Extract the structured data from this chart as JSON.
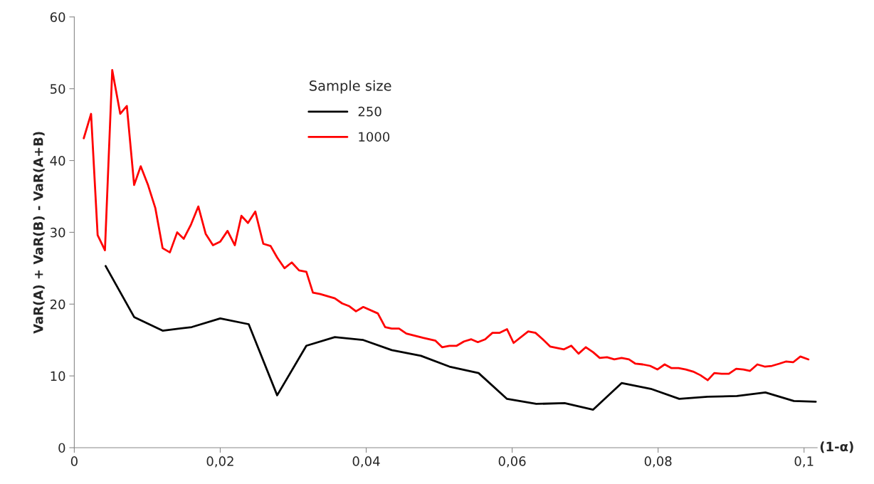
{
  "chart_data": {
    "type": "line",
    "xlabel": "(1-α)",
    "ylabel": "VaR(A) + VaR(B) - VaR(A+B)",
    "legend_title": "Sample size",
    "legend": "top",
    "grid": false,
    "marker": "none",
    "line_style": "solid",
    "xlim": [
      0,
      0.1018
    ],
    "ylim": [
      0,
      60
    ],
    "xticks": [
      0,
      {
        "value": 0.02,
        "label": "0,02"
      },
      {
        "value": 0.04,
        "label": "0,04"
      },
      {
        "value": 0.06,
        "label": "0,06"
      },
      {
        "value": 0.08,
        "label": "0,08"
      },
      {
        "value": 0.1,
        "label": "0,1"
      }
    ],
    "yticks": [
      0,
      10,
      20,
      30,
      40,
      50,
      60
    ],
    "series": [
      {
        "name": "250",
        "color": "#000000",
        "x": [
          0.0043,
          0.0082,
          0.0121,
          0.0161,
          0.02,
          0.0239,
          0.0278,
          0.0318,
          0.0357,
          0.0396,
          0.0435,
          0.0475,
          0.0514,
          0.0554,
          0.0593,
          0.0633,
          0.0672,
          0.0711,
          0.075,
          0.079,
          0.0829,
          0.0868,
          0.0908,
          0.0947,
          0.0986,
          0.1016
        ],
        "values": [
          25.3,
          18.2,
          16.3,
          16.8,
          18.0,
          17.2,
          7.3,
          14.2,
          15.4,
          15.0,
          13.6,
          12.8,
          11.3,
          10.4,
          6.8,
          6.1,
          6.2,
          5.3,
          9.0,
          8.2,
          6.8,
          7.1,
          7.2,
          7.7,
          6.5,
          6.4
        ]
      },
      {
        "name": "1000",
        "color": "#ff0000",
        "x": [
          0.0013,
          0.0023,
          0.0032,
          0.0042,
          0.0052,
          0.0063,
          0.0072,
          0.0082,
          0.0091,
          0.0101,
          0.0111,
          0.0121,
          0.0131,
          0.0141,
          0.015,
          0.016,
          0.017,
          0.018,
          0.019,
          0.02,
          0.021,
          0.022,
          0.0229,
          0.0238,
          0.0248,
          0.0259,
          0.0269,
          0.0278,
          0.0288,
          0.0298,
          0.0308,
          0.0318,
          0.0327,
          0.0337,
          0.0357,
          0.0367,
          0.0377,
          0.0386,
          0.0396,
          0.0416,
          0.0426,
          0.0435,
          0.0445,
          0.0455,
          0.0478,
          0.0495,
          0.0504,
          0.0514,
          0.0524,
          0.0534,
          0.0544,
          0.0553,
          0.0563,
          0.0573,
          0.0583,
          0.0593,
          0.0602,
          0.0622,
          0.0632,
          0.0642,
          0.0652,
          0.0671,
          0.0681,
          0.0691,
          0.0701,
          0.0711,
          0.072,
          0.073,
          0.074,
          0.075,
          0.076,
          0.0769,
          0.0779,
          0.0789,
          0.0799,
          0.0809,
          0.0818,
          0.0828,
          0.0838,
          0.0848,
          0.0858,
          0.0868,
          0.0877,
          0.0887,
          0.0897,
          0.0907,
          0.0917,
          0.0926,
          0.0936,
          0.0946,
          0.0956,
          0.0966,
          0.0975,
          0.0985,
          0.0995,
          0.1006
        ],
        "values": [
          43.1,
          46.5,
          29.6,
          27.5,
          52.6,
          46.5,
          47.6,
          36.6,
          39.2,
          36.6,
          33.4,
          27.8,
          27.2,
          30.0,
          29.1,
          31.1,
          33.6,
          29.8,
          28.2,
          28.7,
          30.2,
          28.2,
          32.3,
          31.3,
          32.9,
          28.4,
          28.1,
          26.5,
          25.0,
          25.8,
          24.7,
          24.5,
          21.6,
          21.4,
          20.8,
          20.1,
          19.7,
          19.0,
          19.6,
          18.7,
          16.8,
          16.6,
          16.6,
          15.9,
          15.3,
          14.9,
          14.0,
          14.2,
          14.2,
          14.8,
          15.1,
          14.7,
          15.1,
          16.0,
          16.0,
          16.5,
          14.6,
          16.2,
          16.0,
          15.1,
          14.1,
          13.7,
          14.2,
          13.1,
          14.0,
          13.3,
          12.5,
          12.6,
          12.3,
          12.5,
          12.3,
          11.7,
          11.6,
          11.4,
          10.9,
          11.6,
          11.1,
          11.1,
          10.9,
          10.6,
          10.1,
          9.4,
          10.4,
          10.3,
          10.3,
          11.0,
          10.9,
          10.7,
          11.6,
          11.3,
          11.4,
          11.7,
          12.0,
          11.9,
          12.7,
          12.3
        ]
      }
    ]
  }
}
